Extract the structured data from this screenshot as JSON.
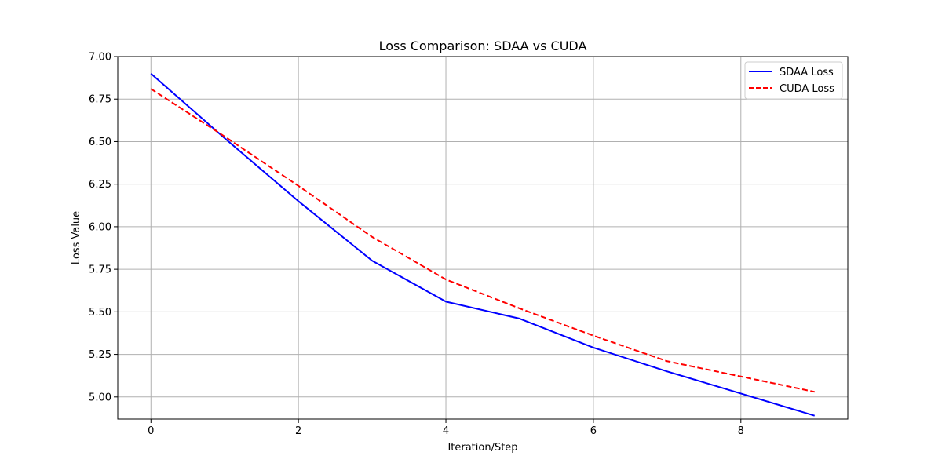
{
  "chart_data": {
    "type": "line",
    "title": "Loss Comparison: SDAA vs CUDA",
    "xlabel": "Iteration/Step",
    "ylabel": "Loss Value",
    "x": [
      0,
      1,
      2,
      3,
      4,
      5,
      6,
      7,
      8,
      9
    ],
    "xlim": [
      -0.45,
      9.45
    ],
    "ylim": [
      4.87,
      7.0
    ],
    "xticks": [
      0,
      2,
      4,
      6,
      8
    ],
    "xtick_labels": [
      "0",
      "2",
      "4",
      "6",
      "8"
    ],
    "yticks": [
      5.0,
      5.25,
      5.5,
      5.75,
      6.0,
      6.25,
      6.5,
      6.75,
      7.0
    ],
    "ytick_labels": [
      "5.00",
      "5.25",
      "5.50",
      "5.75",
      "6.00",
      "6.25",
      "6.50",
      "6.75",
      "7.00"
    ],
    "grid": true,
    "legend_position": "top-right",
    "series": [
      {
        "name": "SDAA Loss",
        "color": "#0000ff",
        "linestyle": "solid",
        "values": [
          6.9,
          6.52,
          6.15,
          5.8,
          5.56,
          5.46,
          5.29,
          5.15,
          5.02,
          4.89
        ]
      },
      {
        "name": "CUDA Loss",
        "color": "#ff0000",
        "linestyle": "dashed",
        "values": [
          6.81,
          6.53,
          6.24,
          5.94,
          5.69,
          5.52,
          5.36,
          5.21,
          5.12,
          5.03
        ]
      }
    ]
  }
}
